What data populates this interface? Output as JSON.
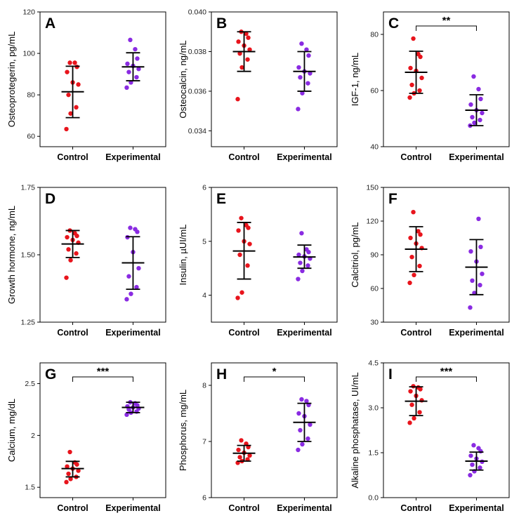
{
  "colors": {
    "control": "#e8141c",
    "experimental": "#8a2be2",
    "axis": "#000000"
  },
  "chart_data": [
    {
      "type": "scatter",
      "panel": "A",
      "ylabel": "Osteoprotegerin, pg/mL",
      "categories": [
        "Control",
        "Experimental"
      ],
      "ylim": [
        55,
        120
      ],
      "yticks": [
        60,
        80,
        100,
        120
      ],
      "series": [
        {
          "name": "Control",
          "mean": 81.5,
          "upper": 93.8,
          "lower": 69.0,
          "points": [
            63.5,
            71,
            74,
            80,
            85,
            86,
            91,
            93.5,
            95.5,
            95.5
          ]
        },
        {
          "name": "Experimental",
          "mean": 93.5,
          "upper": 100.3,
          "lower": 86.8,
          "points": [
            83.5,
            86,
            88.5,
            91,
            92.5,
            94,
            95,
            97.5,
            102,
            106.5
          ]
        }
      ],
      "significance": null
    },
    {
      "type": "scatter",
      "panel": "B",
      "ylabel": "Osteocalcin, ng/mL",
      "categories": [
        "Control",
        "Experimental"
      ],
      "ylim": [
        0.0332,
        0.04
      ],
      "yticks": [
        0.034,
        0.036,
        0.038,
        0.04
      ],
      "ytick_labels": [
        "0.034",
        "0.036",
        "0.038",
        "0.040"
      ],
      "series": [
        {
          "name": "Control",
          "mean": 0.038,
          "upper": 0.039,
          "lower": 0.037,
          "points": [
            0.0356,
            0.0372,
            0.0376,
            0.0379,
            0.0381,
            0.0383,
            0.0385,
            0.0387,
            0.0389,
            0.039
          ]
        },
        {
          "name": "Experimental",
          "mean": 0.037,
          "upper": 0.038,
          "lower": 0.036,
          "points": [
            0.0351,
            0.0359,
            0.0364,
            0.0367,
            0.0369,
            0.037,
            0.0372,
            0.0378,
            0.0381,
            0.0384
          ]
        }
      ],
      "significance": null
    },
    {
      "type": "scatter",
      "panel": "C",
      "ylabel": "IGF-1, ng/mL",
      "categories": [
        "Control",
        "Experimental"
      ],
      "ylim": [
        40,
        88
      ],
      "yticks": [
        40,
        60,
        80
      ],
      "series": [
        {
          "name": "Control",
          "mean": 66.5,
          "upper": 74,
          "lower": 59,
          "points": [
            57.5,
            59,
            60,
            62,
            64.5,
            67,
            68,
            72,
            73,
            78.5
          ]
        },
        {
          "name": "Experimental",
          "mean": 53,
          "upper": 58.5,
          "lower": 47.5,
          "points": [
            47.5,
            48.5,
            49.5,
            50.5,
            52,
            53,
            55,
            57,
            60.5,
            65
          ]
        }
      ],
      "significance": "**"
    },
    {
      "type": "scatter",
      "panel": "D",
      "ylabel": "Growth hormone, ng/mL",
      "categories": [
        "Control",
        "Experimental"
      ],
      "ylim": [
        1.25,
        1.75
      ],
      "yticks": [
        1.25,
        1.5,
        1.75
      ],
      "ytick_labels": [
        "1.25",
        "1.50",
        "1.75"
      ],
      "series": [
        {
          "name": "Control",
          "mean": 1.54,
          "upper": 1.59,
          "lower": 1.49,
          "points": [
            1.415,
            1.48,
            1.505,
            1.52,
            1.545,
            1.555,
            1.565,
            1.57,
            1.58,
            1.59
          ]
        },
        {
          "name": "Experimental",
          "mean": 1.47,
          "upper": 1.567,
          "lower": 1.372,
          "points": [
            1.335,
            1.355,
            1.38,
            1.42,
            1.45,
            1.51,
            1.565,
            1.585,
            1.595,
            1.6
          ]
        }
      ],
      "significance": null
    },
    {
      "type": "scatter",
      "panel": "E",
      "ylabel": "Insulin, µUI/mL",
      "categories": [
        "Control",
        "Experimental"
      ],
      "ylim": [
        3.5,
        6
      ],
      "yticks": [
        4,
        5,
        6
      ],
      "series": [
        {
          "name": "Control",
          "mean": 4.82,
          "upper": 5.35,
          "lower": 4.3,
          "points": [
            3.95,
            4.05,
            4.55,
            4.75,
            4.95,
            5.0,
            5.2,
            5.25,
            5.3,
            5.43
          ]
        },
        {
          "name": "Experimental",
          "mean": 4.71,
          "upper": 4.93,
          "lower": 4.5,
          "points": [
            4.3,
            4.45,
            4.55,
            4.6,
            4.68,
            4.72,
            4.75,
            4.8,
            4.85,
            5.15
          ]
        }
      ],
      "significance": null
    },
    {
      "type": "scatter",
      "panel": "F",
      "ylabel": "Calcitriol, pg/mL",
      "categories": [
        "Control",
        "Experimental"
      ],
      "ylim": [
        30,
        150
      ],
      "yticks": [
        30,
        60,
        90,
        120,
        150
      ],
      "series": [
        {
          "name": "Control",
          "mean": 95,
          "upper": 115,
          "lower": 75,
          "points": [
            65,
            72,
            80,
            88,
            96,
            100,
            105,
            108,
            111,
            128
          ]
        },
        {
          "name": "Experimental",
          "mean": 79,
          "upper": 103.5,
          "lower": 54.5,
          "points": [
            43,
            56,
            63,
            67,
            73,
            84,
            93,
            97,
            122
          ]
        }
      ],
      "significance": null
    },
    {
      "type": "scatter",
      "panel": "G",
      "ylabel": "Calcium, mg/dL",
      "categories": [
        "Control",
        "Experimental"
      ],
      "ylim": [
        1.4,
        2.7
      ],
      "yticks": [
        1.5,
        2.0,
        2.5
      ],
      "series": [
        {
          "name": "Control",
          "mean": 1.68,
          "upper": 1.75,
          "lower": 1.6,
          "points": [
            1.55,
            1.58,
            1.6,
            1.63,
            1.66,
            1.68,
            1.7,
            1.72,
            1.74,
            1.84
          ]
        },
        {
          "name": "Experimental",
          "mean": 2.27,
          "upper": 2.32,
          "lower": 2.22,
          "points": [
            2.2,
            2.22,
            2.23,
            2.25,
            2.26,
            2.27,
            2.28,
            2.29,
            2.31,
            2.32
          ]
        }
      ],
      "significance": "***"
    },
    {
      "type": "scatter",
      "panel": "H",
      "ylabel": "Phosphorus, mg/mL",
      "categories": [
        "Control",
        "Experimental"
      ],
      "ylim": [
        6,
        8.4
      ],
      "yticks": [
        6,
        7,
        8
      ],
      "series": [
        {
          "name": "Control",
          "mean": 6.79,
          "upper": 6.93,
          "lower": 6.65,
          "points": [
            6.62,
            6.65,
            6.68,
            6.72,
            6.75,
            6.8,
            6.85,
            6.9,
            6.96,
            7.02
          ]
        },
        {
          "name": "Experimental",
          "mean": 7.34,
          "upper": 7.68,
          "lower": 7.0,
          "points": [
            6.85,
            6.95,
            7.05,
            7.2,
            7.3,
            7.45,
            7.5,
            7.65,
            7.72,
            7.75
          ]
        }
      ],
      "significance": "*"
    },
    {
      "type": "scatter",
      "panel": "I",
      "ylabel": "Alkaline phosphatase, UI/mL",
      "categories": [
        "Control",
        "Experimental"
      ],
      "ylim": [
        0,
        4.5
      ],
      "yticks": [
        0,
        1.5,
        3.0,
        4.5
      ],
      "ytick_labels": [
        "0.0",
        "1.5",
        "3.0",
        "4.5"
      ],
      "series": [
        {
          "name": "Control",
          "mean": 3.22,
          "upper": 3.7,
          "lower": 2.74,
          "points": [
            2.5,
            2.65,
            2.85,
            3.1,
            3.25,
            3.4,
            3.55,
            3.62,
            3.68,
            3.72
          ]
        },
        {
          "name": "Experimental",
          "mean": 1.22,
          "upper": 1.52,
          "lower": 0.92,
          "points": [
            0.75,
            0.88,
            1.0,
            1.1,
            1.2,
            1.3,
            1.4,
            1.55,
            1.65,
            1.75
          ]
        }
      ],
      "significance": "***"
    }
  ]
}
